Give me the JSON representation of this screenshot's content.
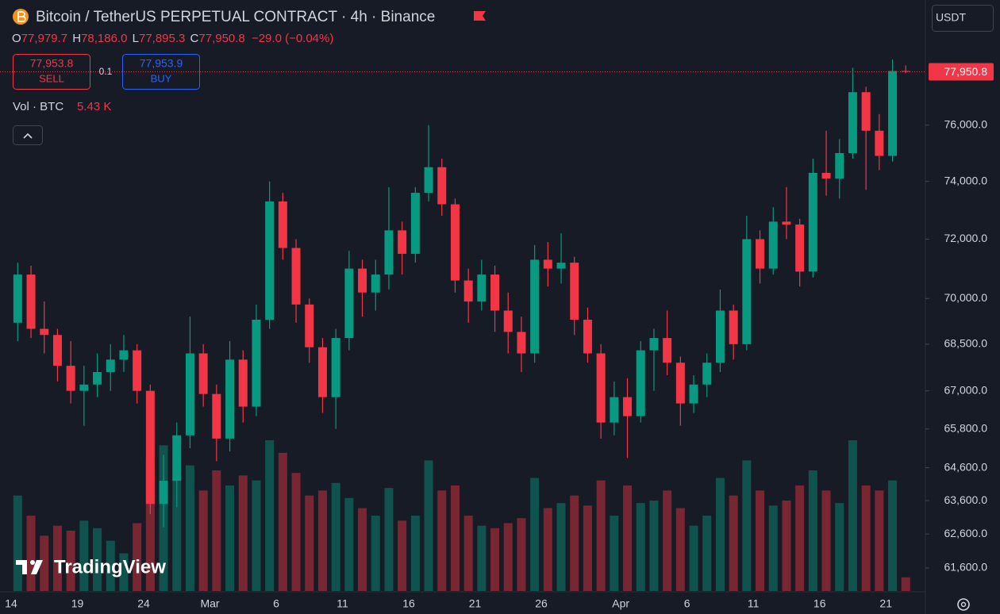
{
  "header": {
    "title": "Bitcoin / TetherUS PERPETUAL CONTRACT · 4h · Binance",
    "o_label": "O",
    "o_value": "77,979.7",
    "h_label": "H",
    "h_value": "78,186.0",
    "l_label": "L",
    "l_value": "77,895.3",
    "c_label": "C",
    "c_value": "77,950.8",
    "change": "−29.0 (−0.04%)",
    "sell_price": "77,953.8",
    "sell_label": "SELL",
    "spread": "0.1",
    "buy_price": "77,953.9",
    "buy_label": "BUY",
    "vol_label": "Vol · BTC",
    "vol_value": "5.43 K",
    "currency": "USDT",
    "brand": "TradingView"
  },
  "chart_data": {
    "type": "candlestick",
    "log_scale": true,
    "grid": false,
    "up_color": "#089981",
    "down_color": "#f23645",
    "categories": [
      "14",
      null,
      null,
      null,
      null,
      "19",
      null,
      null,
      null,
      null,
      "24",
      null,
      null,
      null,
      null,
      "Mar",
      null,
      null,
      null,
      null,
      "6",
      null,
      null,
      null,
      null,
      "11",
      null,
      null,
      null,
      null,
      "16",
      null,
      null,
      null,
      null,
      "21",
      null,
      null,
      null,
      null,
      "26",
      null,
      null,
      null,
      null,
      null,
      "Apr",
      null,
      null,
      null,
      null,
      "6",
      null,
      null,
      null,
      null,
      "11",
      null,
      null,
      null,
      null,
      "16",
      null,
      null,
      null,
      null,
      "21",
      null
    ],
    "open": [
      69200,
      70800,
      69000,
      68800,
      67800,
      67000,
      67200,
      67600,
      68000,
      68300,
      67000,
      63500,
      64200,
      65600,
      68200,
      66900,
      65500,
      68000,
      66500,
      69300,
      73300,
      71700,
      69800,
      68400,
      66800,
      68700,
      71000,
      70200,
      70800,
      72300,
      71500,
      73600,
      74500,
      73200,
      70600,
      69900,
      70800,
      69600,
      68900,
      68200,
      71300,
      71000,
      71200,
      69300,
      68200,
      66000,
      66800,
      66200,
      68300,
      68700,
      67900,
      66600,
      67200,
      67900,
      69600,
      68500,
      72000,
      71000,
      72600,
      72500,
      70900,
      74300,
      74100,
      75000,
      77200,
      75800,
      74900,
      77979.7
    ],
    "high": [
      71200,
      71100,
      69900,
      69000,
      68600,
      67800,
      68200,
      68500,
      68800,
      68500,
      67200,
      65000,
      66000,
      69400,
      68500,
      67200,
      68600,
      68300,
      69800,
      74000,
      73600,
      72000,
      70000,
      68700,
      69000,
      71600,
      71300,
      71300,
      73800,
      72600,
      73800,
      76000,
      74800,
      73400,
      71000,
      71300,
      71100,
      70200,
      69400,
      71800,
      71900,
      72200,
      71400,
      69700,
      68500,
      67300,
      67400,
      68600,
      69000,
      69600,
      68100,
      67500,
      68200,
      70300,
      69800,
      72800,
      72300,
      73100,
      73800,
      72700,
      74800,
      75800,
      75500,
      78100,
      77400,
      76400,
      78400,
      78186.0
    ],
    "low": [
      68600,
      68700,
      68200,
      67300,
      66600,
      65900,
      66800,
      67000,
      67600,
      66600,
      63200,
      62800,
      63400,
      65200,
      66500,
      64800,
      65100,
      66000,
      66200,
      69000,
      71300,
      69200,
      67900,
      66300,
      65800,
      68300,
      69400,
      69600,
      70300,
      70800,
      71200,
      73300,
      72800,
      70200,
      69200,
      69600,
      68900,
      68200,
      67600,
      67900,
      70400,
      70500,
      68800,
      67900,
      65500,
      65600,
      64900,
      66000,
      67000,
      67500,
      65900,
      66300,
      66800,
      67600,
      68000,
      68300,
      70500,
      70800,
      72000,
      70400,
      70700,
      73500,
      73400,
      74800,
      73700,
      74400,
      74700,
      77895.3
    ],
    "close": [
      70800,
      69000,
      68800,
      67800,
      67000,
      67200,
      67600,
      68000,
      68300,
      67000,
      63500,
      64200,
      65600,
      68200,
      66900,
      65500,
      68000,
      66500,
      69300,
      73300,
      71700,
      69800,
      68400,
      66800,
      68700,
      71000,
      70200,
      70800,
      72300,
      71500,
      73600,
      74500,
      73200,
      70600,
      69900,
      70800,
      69600,
      68900,
      68200,
      71300,
      71000,
      71200,
      69300,
      68200,
      66000,
      66800,
      66200,
      68300,
      68700,
      67900,
      66600,
      67200,
      67900,
      69600,
      68500,
      72000,
      71000,
      72600,
      72500,
      70900,
      74300,
      74100,
      75000,
      77200,
      75800,
      74900,
      77979.7,
      77950.8
    ],
    "volume": [
      38000,
      30000,
      22000,
      26000,
      24000,
      28000,
      25000,
      20000,
      15000,
      27000,
      52000,
      58000,
      45000,
      50000,
      40000,
      48000,
      42000,
      46000,
      44000,
      60000,
      55000,
      47000,
      38000,
      40000,
      43000,
      37000,
      33000,
      30000,
      41000,
      28000,
      30000,
      52000,
      40000,
      42000,
      30000,
      26000,
      25000,
      27000,
      29000,
      45000,
      33000,
      35000,
      38000,
      34000,
      44000,
      30000,
      42000,
      35000,
      36000,
      40000,
      33000,
      26000,
      30000,
      45000,
      38000,
      52000,
      40000,
      34000,
      36000,
      42000,
      48000,
      40000,
      35000,
      60000,
      42000,
      40000,
      44000,
      5430
    ],
    "ylim": [
      60930,
      80650
    ],
    "yticks": [
      {
        "value": 76000,
        "label": "76,000.0"
      },
      {
        "value": 74000,
        "label": "74,000.0"
      },
      {
        "value": 72000,
        "label": "72,000.0"
      },
      {
        "value": 70000,
        "label": "70,000.0"
      },
      {
        "value": 68500,
        "label": "68,500.0"
      },
      {
        "value": 67000,
        "label": "67,000.0"
      },
      {
        "value": 65800,
        "label": "65,800.0"
      },
      {
        "value": 64600,
        "label": "64,600.0"
      },
      {
        "value": 63600,
        "label": "63,600.0"
      },
      {
        "value": 62600,
        "label": "62,600.0"
      },
      {
        "value": 61600,
        "label": "61,600.0"
      }
    ],
    "last_price": {
      "value": 77950.8,
      "label": "77,950.8"
    }
  }
}
